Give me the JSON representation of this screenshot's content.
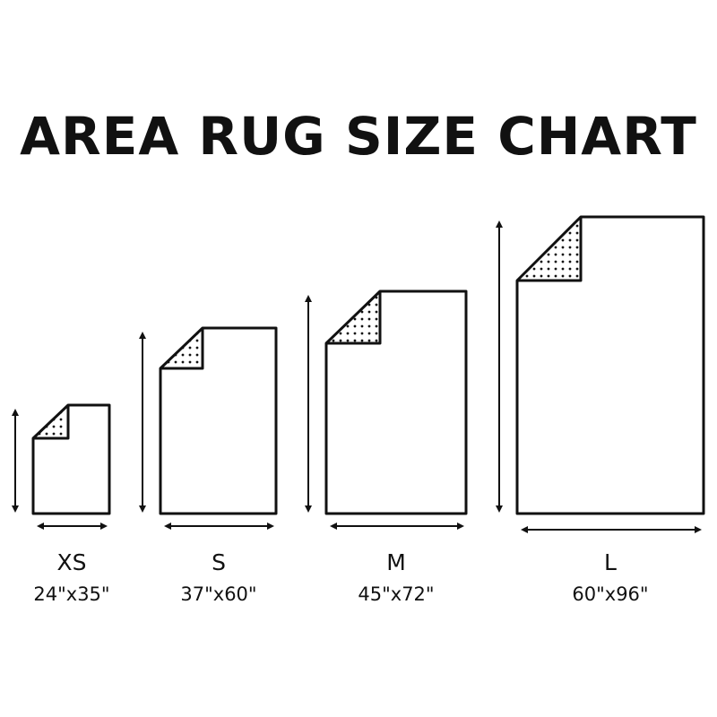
{
  "title": "AREA RUG SIZE CHART",
  "rugs": [
    {
      "size": "XS",
      "dimensions": "24\"x35\""
    },
    {
      "size": "S",
      "dimensions": "37\"x60\""
    },
    {
      "size": "M",
      "dimensions": "45\"x72\""
    },
    {
      "size": "L",
      "dimensions": "60\"x96\""
    }
  ],
  "colors": {
    "line": "#111111",
    "background": "#ffffff"
  }
}
